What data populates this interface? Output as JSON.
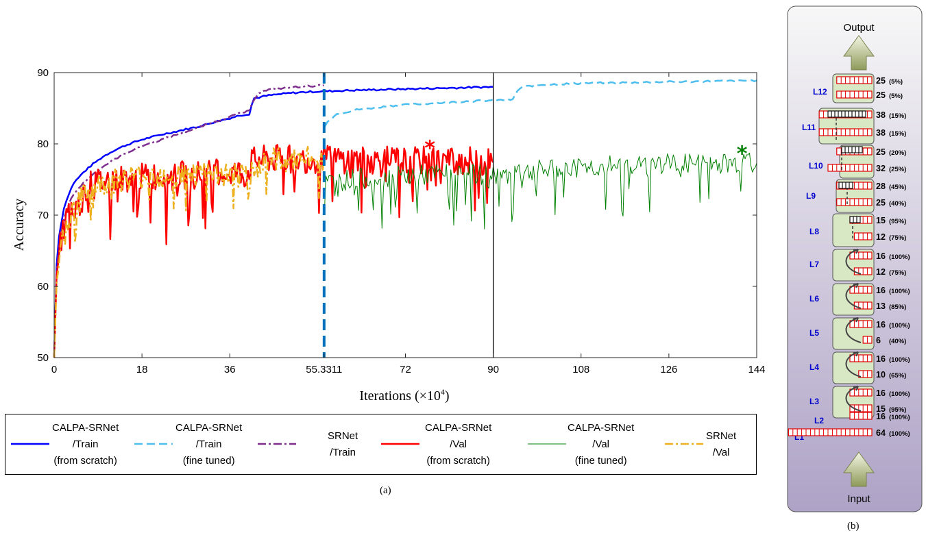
{
  "chart_data": [
    {
      "type": "line",
      "title": "",
      "xlabel": "Iterations (×10",
      "xlabel_sup": "4",
      "xlabel_close": ")",
      "ylabel": "Accuracy",
      "xlim": [
        0,
        144
      ],
      "ylim": [
        50,
        90
      ],
      "x_ticks": [
        0,
        18,
        36,
        55.3311,
        72,
        90,
        108,
        126,
        144
      ],
      "x_tick_labels": [
        "0",
        "18",
        "36",
        "55.3311",
        "72",
        "90",
        "108",
        "126",
        "144"
      ],
      "y_ticks": [
        50,
        60,
        70,
        80,
        90
      ],
      "y_tick_labels": [
        "50",
        "60",
        "70",
        "80",
        "90"
      ],
      "grid": false,
      "legend_position": "below",
      "vertical_markers": [
        {
          "x": 55.3311,
          "style": "dashed",
          "color": "#0072bd"
        },
        {
          "x": 90,
          "style": "solid",
          "color": "#000000"
        }
      ],
      "series": [
        {
          "label_lines": [
            "CALPA-SRNet",
            "/Train",
            "(from scratch)"
          ],
          "color": "#0000ff",
          "style": "solid",
          "width": 2.5,
          "x": [
            0,
            0.5,
            1,
            2,
            3,
            4,
            6,
            8,
            10,
            12,
            15,
            18,
            22,
            26,
            30,
            33,
            36,
            38,
            40,
            40.5,
            41,
            44,
            48,
            52,
            56,
            60,
            66,
            72,
            78,
            84,
            90
          ],
          "y": [
            50,
            63,
            67,
            71,
            73,
            74.5,
            76,
            77.2,
            78.2,
            79,
            79.9,
            80.6,
            81.3,
            81.9,
            82.5,
            83.1,
            83.6,
            84,
            84.2,
            85.5,
            86.4,
            86.8,
            87.1,
            87.3,
            87.4,
            87.5,
            87.6,
            87.7,
            87.8,
            87.9,
            88
          ]
        },
        {
          "label_lines": [
            "CALPA-SRNet",
            "/Train",
            "(fine tuned)"
          ],
          "color": "#4dbeee",
          "style": "dashed",
          "width": 2.5,
          "x": [
            55.4,
            56,
            58,
            62,
            66,
            70,
            75,
            80,
            85,
            90,
            94,
            95,
            96,
            100,
            108,
            116,
            126,
            136,
            144
          ],
          "y": [
            82.3,
            83.2,
            84.2,
            84.8,
            85.1,
            85.4,
            85.6,
            85.8,
            86,
            86.1,
            86.2,
            87.5,
            88,
            88.3,
            88.5,
            88.6,
            88.7,
            88.8,
            88.9
          ]
        },
        {
          "label_lines": [
            "SRNet",
            "/Train"
          ],
          "color": "#7e2f8e",
          "style": "dashdot",
          "width": 2.5,
          "x": [
            0,
            0.5,
            1,
            2,
            3,
            4,
            6,
            8,
            10,
            12,
            15,
            18,
            22,
            26,
            30,
            33,
            36,
            38,
            40,
            41,
            42,
            44,
            48,
            52,
            55.3
          ],
          "y": [
            50,
            62,
            65.5,
            69.5,
            71.5,
            73,
            74.5,
            75.8,
            76.8,
            77.7,
            78.8,
            79.7,
            80.6,
            81.5,
            82.4,
            83.1,
            83.8,
            84.3,
            84.6,
            86.3,
            87.2,
            87.6,
            87.9,
            88.1,
            88.2
          ]
        },
        {
          "label_lines": [
            "CALPA-SRNet",
            "/Val",
            "(from scratch)"
          ],
          "color": "#ff0000",
          "style": "solid",
          "width": 2.5,
          "x": [
            0,
            0.5,
            1.5,
            3,
            5,
            6.5,
            8,
            10,
            12,
            15,
            18,
            20,
            23,
            26,
            29,
            32,
            35,
            38,
            39.5,
            40.5,
            42,
            46,
            50,
            55.3,
            60,
            65,
            70,
            75,
            77,
            80,
            85,
            90
          ],
          "y": [
            50,
            61.5,
            67,
            70.5,
            71,
            73.8,
            74.5,
            74.8,
            75,
            75.2,
            75.3,
            75.5,
            75.6,
            75.6,
            75.7,
            75.8,
            76,
            76,
            75.5,
            77.5,
            77.8,
            77.9,
            77.8,
            77.9,
            77.8,
            77.7,
            77.6,
            77.6,
            77.8,
            77.7,
            77.6,
            77.4
          ],
          "best_marker": {
            "x": 77,
            "y": 79.3,
            "symbol": "*"
          }
        },
        {
          "label_lines": [
            "CALPA-SRNet",
            "/Val",
            "(fine tuned)"
          ],
          "color": "#008000",
          "style": "solid",
          "width": 1,
          "x": [
            55.4,
            60,
            66,
            72,
            78,
            84,
            90,
            95,
            100,
            108,
            116,
            126,
            136,
            144
          ],
          "y": [
            74.5,
            75,
            75.3,
            75.5,
            75.7,
            75.9,
            75.5,
            75.9,
            76.3,
            76.7,
            77,
            77.2,
            77.3,
            77.3
          ],
          "best_marker": {
            "x": 141,
            "y": 78.5,
            "symbol": "*"
          }
        },
        {
          "label_lines": [
            "SRNet",
            "/Val"
          ],
          "color": "#edb120",
          "style": "dashdot",
          "width": 2.5,
          "x": [
            0,
            0.5,
            1.5,
            3,
            5,
            7,
            9,
            12,
            15,
            18,
            21,
            24,
            27,
            30,
            33,
            36,
            39,
            40,
            41,
            44,
            48,
            52,
            55.3
          ],
          "y": [
            50,
            60.5,
            65.5,
            69.5,
            72,
            73.3,
            74.2,
            74.8,
            75.2,
            75.5,
            75.6,
            75.7,
            75.7,
            75.7,
            75.7,
            75.6,
            75.2,
            75,
            77.3,
            77.7,
            77.8,
            77.9,
            77.9
          ]
        }
      ]
    },
    {
      "type": "diagram",
      "top_label": "Output",
      "bottom_label": "Input",
      "layers": [
        {
          "name": "L12",
          "rows": [
            {
              "value": "25",
              "pct": "(5%)"
            },
            {
              "value": "25",
              "pct": "(5%)"
            }
          ]
        },
        {
          "name": "L11",
          "rows": [
            {
              "value": "38",
              "pct": "(15%)"
            },
            {
              "value": "38",
              "pct": "(15%)"
            }
          ]
        },
        {
          "name": "L10",
          "rows": [
            {
              "value": "25",
              "pct": "(20%)"
            },
            {
              "value": "32",
              "pct": "(25%)"
            }
          ]
        },
        {
          "name": "L9",
          "rows": [
            {
              "value": "28",
              "pct": "(45%)"
            },
            {
              "value": "25",
              "pct": "(40%)"
            }
          ]
        },
        {
          "name": "L8",
          "rows": [
            {
              "value": "15",
              "pct": "(95%)"
            },
            {
              "value": "12",
              "pct": "(75%)"
            }
          ]
        },
        {
          "name": "L7",
          "rows": [
            {
              "value": "16",
              "pct": "(100%)"
            },
            {
              "value": "12",
              "pct": "(75%)"
            }
          ]
        },
        {
          "name": "L6",
          "rows": [
            {
              "value": "16",
              "pct": "(100%)"
            },
            {
              "value": "13",
              "pct": "(85%)"
            }
          ]
        },
        {
          "name": "L5",
          "rows": [
            {
              "value": "16",
              "pct": "(100%)"
            },
            {
              "value": "6",
              "pct": "(40%)"
            }
          ]
        },
        {
          "name": "L4",
          "rows": [
            {
              "value": "16",
              "pct": "(100%)"
            },
            {
              "value": "10",
              "pct": "(65%)"
            }
          ]
        },
        {
          "name": "L3",
          "rows": [
            {
              "value": "16",
              "pct": "(100%)"
            },
            {
              "value": "15",
              "pct": "(95%)"
            }
          ]
        },
        {
          "name": "L2",
          "rows": [
            {
              "value": "16",
              "pct": "(100%)"
            }
          ]
        },
        {
          "name": "L1",
          "rows": [
            {
              "value": "64",
              "pct": "(100%)"
            }
          ]
        }
      ]
    }
  ],
  "captions": {
    "a": "(a)",
    "b": "(b)"
  },
  "colors": {
    "panel_top": "#f7f7f7",
    "panel_bottom": "#aea2c6",
    "block_fill": "#d9e8c4",
    "cell_red": "#e00000",
    "layer_label": "#0000cc"
  }
}
